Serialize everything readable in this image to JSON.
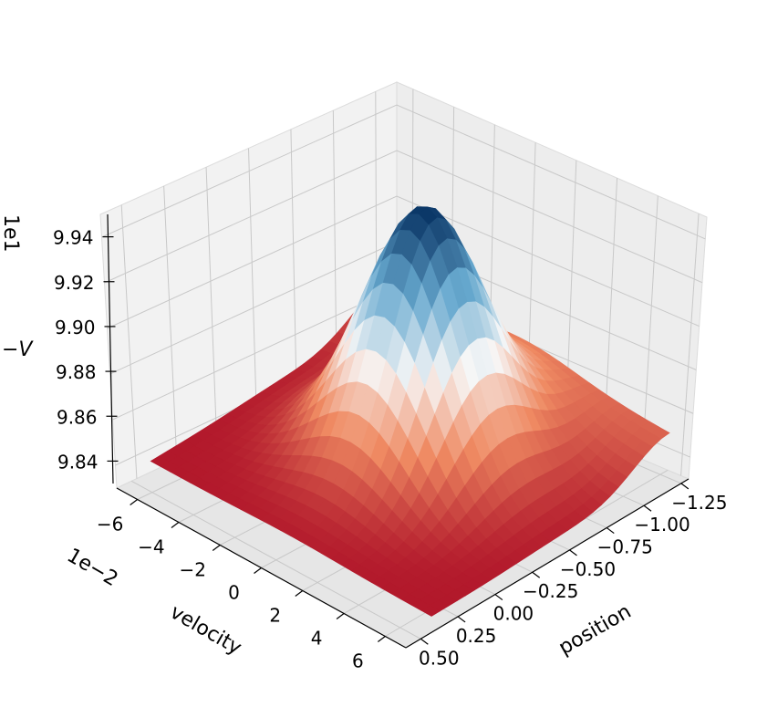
{
  "chart_data": {
    "type": "surface",
    "colormap": "RdBu",
    "grid": true,
    "x": {
      "label": "position",
      "ticks": [
        "−1.25",
        "−1.00",
        "−0.75",
        "−0.50",
        "−0.25",
        "0.00",
        "0.25",
        "0.50"
      ],
      "tick_values": [
        -1.25,
        -1.0,
        -0.75,
        -0.5,
        -0.25,
        0.0,
        0.25,
        0.5
      ],
      "range": [
        -1.3,
        0.6
      ]
    },
    "y": {
      "label": "velocity",
      "offset_label": "1e−2",
      "ticks": [
        "−6",
        "−4",
        "−2",
        "0",
        "2",
        "4",
        "6"
      ],
      "tick_values": [
        -6,
        -4,
        -2,
        0,
        2,
        4,
        6
      ],
      "range": [
        -7,
        7
      ]
    },
    "z": {
      "label": "−V",
      "offset_label": "1e1",
      "ticks": [
        "9.84",
        "9.86",
        "9.88",
        "9.90",
        "9.92",
        "9.94"
      ],
      "tick_values": [
        9.84,
        9.86,
        9.88,
        9.9,
        9.92,
        9.94
      ],
      "range": [
        9.83,
        9.95
      ]
    },
    "surface": {
      "peak": {
        "position": -0.5,
        "velocity": 0,
        "value": 9.945
      },
      "min_value": 9.835
    }
  },
  "colors": {
    "pane": "#f2f2f2",
    "grid": "#c8c8c8",
    "low": "#b2182b",
    "high": "#053061"
  }
}
